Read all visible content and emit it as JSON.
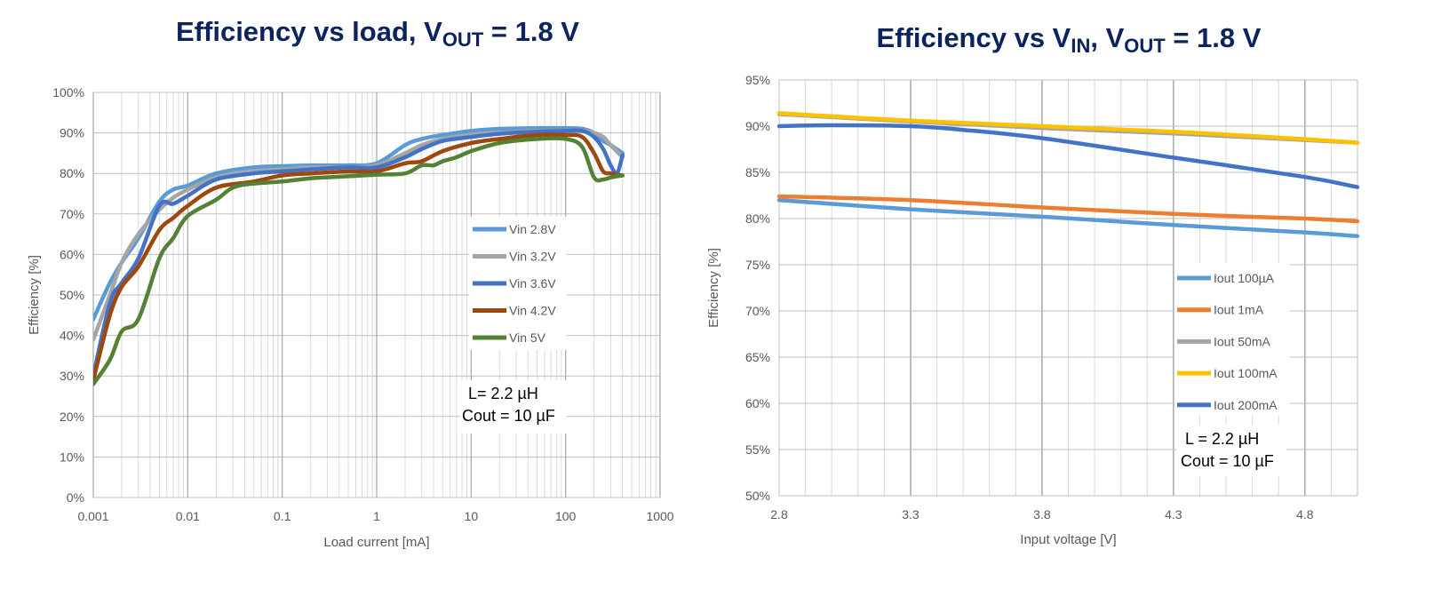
{
  "titles": {
    "left": {
      "main": "Efficiency vs load, V",
      "sub": "OUT",
      "rest": " = 1.8 V"
    },
    "right": {
      "main": "Efficiency vs V",
      "sub1": "IN",
      "mid": ", V",
      "sub2": "OUT",
      "rest": " = 1.8 V"
    }
  },
  "chart_data": [
    {
      "type": "line",
      "xlabel": "Load current [mA]",
      "ylabel": "Efficiency [%]",
      "x_scale": "log",
      "xlim": [
        0.001,
        1000
      ],
      "ylim": [
        0,
        100
      ],
      "x_ticks": [
        "0.001",
        "0.01",
        "0.1",
        "1",
        "10",
        "100",
        "1000"
      ],
      "y_ticks": [
        "0%",
        "10%",
        "20%",
        "30%",
        "40%",
        "50%",
        "60%",
        "70%",
        "80%",
        "90%",
        "100%"
      ],
      "grid": true,
      "legend_position": "center-right",
      "annotation": [
        "L= 2.2 µH",
        "Cout = 10 µF"
      ],
      "series": [
        {
          "name": "Vin 2.8V",
          "color": "#5b9bd5",
          "x": [
            0.001,
            0.0015,
            0.002,
            0.003,
            0.005,
            0.007,
            0.01,
            0.02,
            0.05,
            0.1,
            0.2,
            0.5,
            1,
            2,
            3,
            5,
            10,
            20,
            50,
            100,
            150,
            200,
            250,
            300,
            400
          ],
          "y": [
            44,
            53,
            58,
            64,
            73,
            76,
            77,
            80,
            81.5,
            81.8,
            82,
            82,
            82.5,
            87,
            88.5,
            89.5,
            90.5,
            91,
            91.2,
            91.2,
            91,
            90,
            88,
            87,
            85
          ]
        },
        {
          "name": "Vin 3.2V",
          "color": "#a5a5a5",
          "x": [
            0.001,
            0.0015,
            0.002,
            0.003,
            0.005,
            0.007,
            0.01,
            0.02,
            0.05,
            0.1,
            0.2,
            0.5,
            1,
            2,
            3,
            5,
            10,
            20,
            50,
            100,
            150,
            200,
            250,
            300,
            400
          ],
          "y": [
            39,
            50,
            58,
            65,
            71,
            74,
            76,
            79,
            80.5,
            81,
            81.5,
            81.5,
            82,
            85,
            87,
            88.5,
            89.5,
            90,
            90.5,
            90.5,
            90.5,
            90,
            89,
            87,
            84
          ]
        },
        {
          "name": "Vin 3.6V",
          "color": "#4472c4",
          "x": [
            0.001,
            0.0015,
            0.002,
            0.003,
            0.005,
            0.007,
            0.01,
            0.02,
            0.05,
            0.1,
            0.2,
            0.5,
            1,
            2,
            3,
            5,
            10,
            20,
            50,
            100,
            150,
            200,
            250,
            300,
            350,
            400
          ],
          "y": [
            30,
            48,
            53,
            59,
            72,
            72.5,
            74.5,
            78.5,
            80,
            80.5,
            81,
            81.5,
            81.5,
            84,
            86,
            88,
            89,
            89.8,
            90.3,
            90.5,
            90.5,
            89,
            86,
            82,
            80,
            84.5
          ]
        },
        {
          "name": "Vin 4.2V",
          "color": "#9e480e",
          "x": [
            0.001,
            0.0015,
            0.002,
            0.003,
            0.005,
            0.007,
            0.01,
            0.02,
            0.05,
            0.1,
            0.2,
            0.5,
            1,
            2,
            3,
            5,
            10,
            20,
            50,
            100,
            150,
            200,
            250,
            300,
            400
          ],
          "y": [
            29,
            45,
            52,
            57,
            66,
            69,
            72,
            76.5,
            78,
            79.5,
            80,
            80.5,
            80.5,
            82.5,
            83,
            85.5,
            87.5,
            88.5,
            89.5,
            89.5,
            89,
            85,
            80.5,
            80,
            79.5
          ]
        },
        {
          "name": "Vin 5V",
          "color": "#548235",
          "x": [
            0.001,
            0.0015,
            0.002,
            0.003,
            0.005,
            0.007,
            0.01,
            0.02,
            0.03,
            0.05,
            0.1,
            0.2,
            0.5,
            1,
            2,
            3,
            4,
            5,
            7,
            10,
            20,
            50,
            100,
            150,
            200,
            250,
            300,
            400
          ],
          "y": [
            28,
            34,
            41,
            44,
            59,
            64,
            69.5,
            73.5,
            76.5,
            77.5,
            78,
            78.8,
            79.3,
            79.7,
            80,
            82,
            82,
            83,
            84,
            85.5,
            87.5,
            88.5,
            88.5,
            86.5,
            79,
            78.5,
            79,
            79.5
          ]
        }
      ]
    },
    {
      "type": "line",
      "xlabel": "Input voltage [V]",
      "ylabel": "Efficiency [%]",
      "xlim": [
        2.8,
        5.0
      ],
      "ylim": [
        50,
        95
      ],
      "x_ticks": [
        "2.8",
        "3.3",
        "3.8",
        "4.3",
        "4.8"
      ],
      "y_ticks": [
        "50%",
        "55%",
        "60%",
        "65%",
        "70%",
        "75%",
        "80%",
        "85%",
        "90%",
        "95%"
      ],
      "grid": true,
      "legend_position": "bottom-right",
      "annotation": [
        "L = 2.2 µH",
        "Cout = 10 µF"
      ],
      "series": [
        {
          "name": "Iout 100µA",
          "color": "#5b9bd5",
          "x": [
            2.8,
            3.3,
            3.8,
            4.3,
            4.8,
            5.0
          ],
          "y": [
            82,
            81,
            80.2,
            79.3,
            78.5,
            78.1
          ]
        },
        {
          "name": "Iout 1mA",
          "color": "#ed7d31",
          "x": [
            2.8,
            3.3,
            3.8,
            4.3,
            4.8,
            5.0
          ],
          "y": [
            82.4,
            82,
            81.2,
            80.5,
            80,
            79.7
          ]
        },
        {
          "name": "Iout 50mA",
          "color": "#a5a5a5",
          "x": [
            2.8,
            3.3,
            3.8,
            4.3,
            4.8,
            5.0
          ],
          "y": [
            91.3,
            90.5,
            89.8,
            89.2,
            88.5,
            88.2
          ]
        },
        {
          "name": "Iout 100mA",
          "color": "#ffc000",
          "x": [
            2.8,
            3.3,
            3.8,
            4.3,
            4.8,
            5.0
          ],
          "y": [
            91.4,
            90.6,
            90,
            89.4,
            88.6,
            88.2
          ]
        },
        {
          "name": "Iout 200mA",
          "color": "#4472c4",
          "x": [
            2.8,
            3.0,
            3.3,
            3.5,
            3.8,
            4.3,
            4.8,
            5.0
          ],
          "y": [
            90,
            90.1,
            90,
            89.6,
            88.7,
            86.6,
            84.5,
            83.4
          ]
        }
      ]
    }
  ]
}
